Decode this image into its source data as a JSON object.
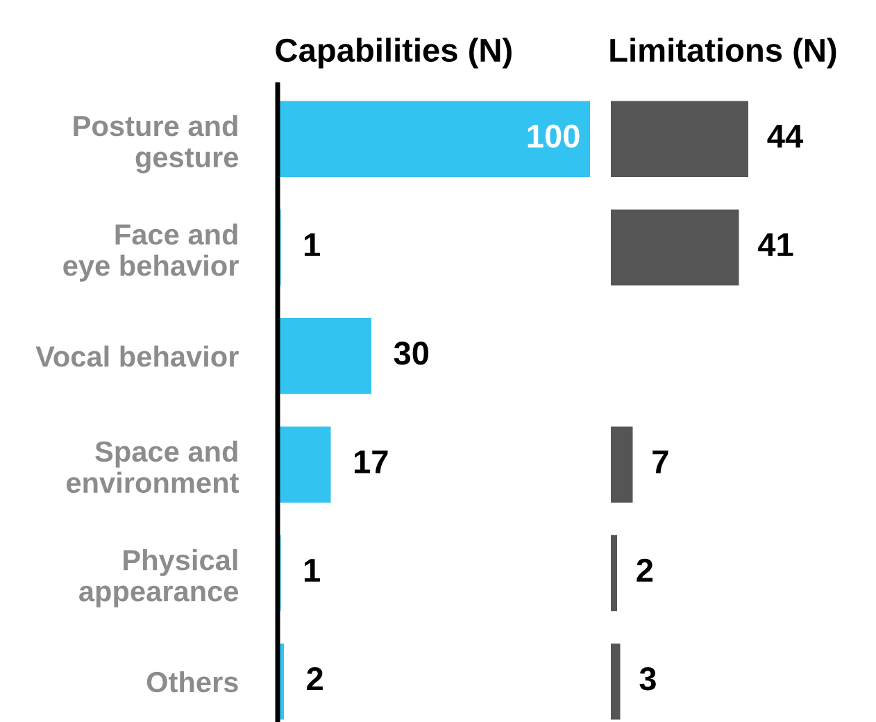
{
  "chart_data": [
    {
      "type": "bar",
      "orientation": "horizontal",
      "title": "Capabilities (N)",
      "categories": [
        "Posture and\ngesture",
        "Face and\neye behavior",
        "Vocal behavior",
        "Space and\nenvironment",
        "Physical\nappearance",
        "Others"
      ],
      "values": [
        100,
        1,
        30,
        17,
        1,
        2
      ],
      "color": "#33c3f0",
      "data_labels": true,
      "tick_labels": "y",
      "grid": false,
      "legend": false
    },
    {
      "type": "bar",
      "orientation": "horizontal",
      "title": "Limitations (N)",
      "categories": [
        null,
        null,
        null,
        null,
        null,
        null
      ],
      "values": [
        44,
        41,
        null,
        7,
        2,
        3
      ],
      "color": "#555555",
      "data_labels": true,
      "tick_labels": false,
      "grid": false,
      "legend": false
    }
  ]
}
